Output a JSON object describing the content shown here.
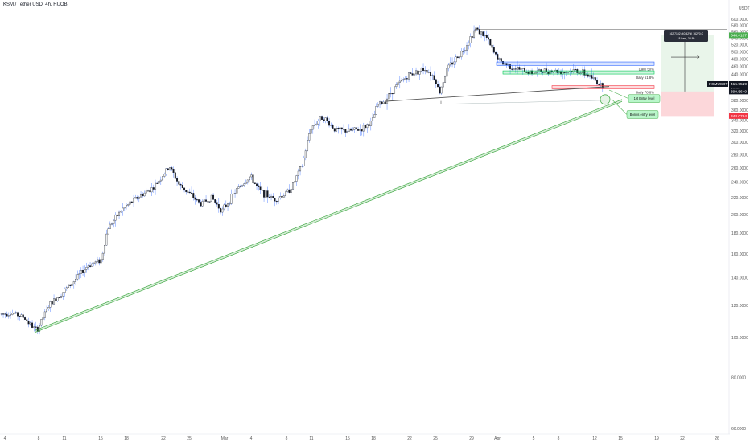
{
  "chart_data": {
    "type": "candlestick",
    "title": "KSM / Tether USD, 4h, HUOBI",
    "y_unit": "USDT",
    "y_scale": "log",
    "ylim": [
      58,
      650
    ],
    "y_ticks": [
      "600.0000",
      "580.0000",
      "560.0000",
      "540.0000",
      "520.0000",
      "500.0000",
      "480.0000",
      "460.0000",
      "440.0000",
      "420.0000",
      "400.0000",
      "380.0000",
      "360.0000",
      "340.0000",
      "320.0000",
      "300.0000",
      "280.0000",
      "260.0000",
      "240.0000",
      "220.0000",
      "200.0000",
      "180.0000",
      "160.0000",
      "140.0000",
      "120.0000",
      "100.0000",
      "80.0000",
      "60.0000"
    ],
    "x_ticks": [
      "4",
      "8",
      "11",
      "15",
      "18",
      "22",
      "25",
      "Mar",
      "4",
      "8",
      "11",
      "15",
      "18",
      "22",
      "25",
      "29",
      "Apr",
      "5",
      "8",
      "12",
      "15",
      "19",
      "22",
      "26"
    ],
    "colors": {
      "up": "#ffffff",
      "down": "#131722",
      "wick": "#2962ff",
      "zone_blue": "#2962ff",
      "zone_green": "#00c853",
      "zone_red": "#f23645",
      "trend": "#4caf50"
    },
    "price_path": [
      [
        0,
        114
      ],
      [
        14,
        115
      ],
      [
        29,
        112
      ],
      [
        38,
        107
      ],
      [
        45,
        104
      ],
      [
        60,
        120
      ],
      [
        75,
        128
      ],
      [
        89,
        136
      ],
      [
        108,
        150
      ],
      [
        125,
        155
      ],
      [
        133,
        185
      ],
      [
        150,
        205
      ],
      [
        170,
        220
      ],
      [
        190,
        233
      ],
      [
        210,
        262
      ],
      [
        222,
        236
      ],
      [
        238,
        222
      ],
      [
        248,
        212
      ],
      [
        262,
        220
      ],
      [
        275,
        204
      ],
      [
        292,
        228
      ],
      [
        310,
        248
      ],
      [
        322,
        228
      ],
      [
        340,
        218
      ],
      [
        355,
        225
      ],
      [
        363,
        236
      ],
      [
        375,
        265
      ],
      [
        385,
        325
      ],
      [
        400,
        347
      ],
      [
        416,
        322
      ],
      [
        432,
        320
      ],
      [
        448,
        323
      ],
      [
        462,
        338
      ],
      [
        468,
        370
      ],
      [
        478,
        380
      ],
      [
        490,
        410
      ],
      [
        508,
        440
      ],
      [
        528,
        455
      ],
      [
        540,
        430
      ],
      [
        545,
        396
      ],
      [
        555,
        455
      ],
      [
        575,
        505
      ],
      [
        590,
        570
      ],
      [
        604,
        540
      ],
      [
        612,
        500
      ],
      [
        622,
        470
      ],
      [
        640,
        455
      ],
      [
        660,
        444
      ],
      [
        680,
        450
      ],
      [
        700,
        446
      ],
      [
        715,
        450
      ],
      [
        730,
        438
      ],
      [
        748,
        412
      ]
    ],
    "annotations": {
      "zones": [
        {
          "label": "Daily 50%",
          "top": 472,
          "bottom": 463,
          "color": "blue"
        },
        {
          "label": "Daily 61.8%",
          "top": 449,
          "bottom": 441,
          "color": "green"
        },
        {
          "label": "Daily 78.6%",
          "top": 413,
          "bottom": 406,
          "color": "red"
        }
      ],
      "callouts": [
        "1st Entry level",
        "Bonus entry level"
      ],
      "measure_label": "162.7102 (40.42%) 16270.0",
      "measure_sub": "18 bars, 3d 8h",
      "price_tags": [
        {
          "text": "548.4107",
          "price": 548.41,
          "color": "#4caf50"
        },
        {
          "text": "KSMUSDT",
          "price": 415.95,
          "color": "#131722"
        },
        {
          "text": "415.9529",
          "price": 415.95,
          "color": "#131722"
        },
        {
          "text": "48:00",
          "price": 409.0,
          "color": "#131722"
        },
        {
          "text": "399.5649",
          "price": 399.56,
          "color": "#131722"
        },
        {
          "text": "348.0784",
          "price": 348.08,
          "color": "#f23645"
        }
      ],
      "position": {
        "target": 548.41,
        "entry": 399.56,
        "stop": 348.08
      },
      "swing_high": 567,
      "swing_low": 372,
      "trend_start": 104,
      "trend_end": 382
    }
  }
}
